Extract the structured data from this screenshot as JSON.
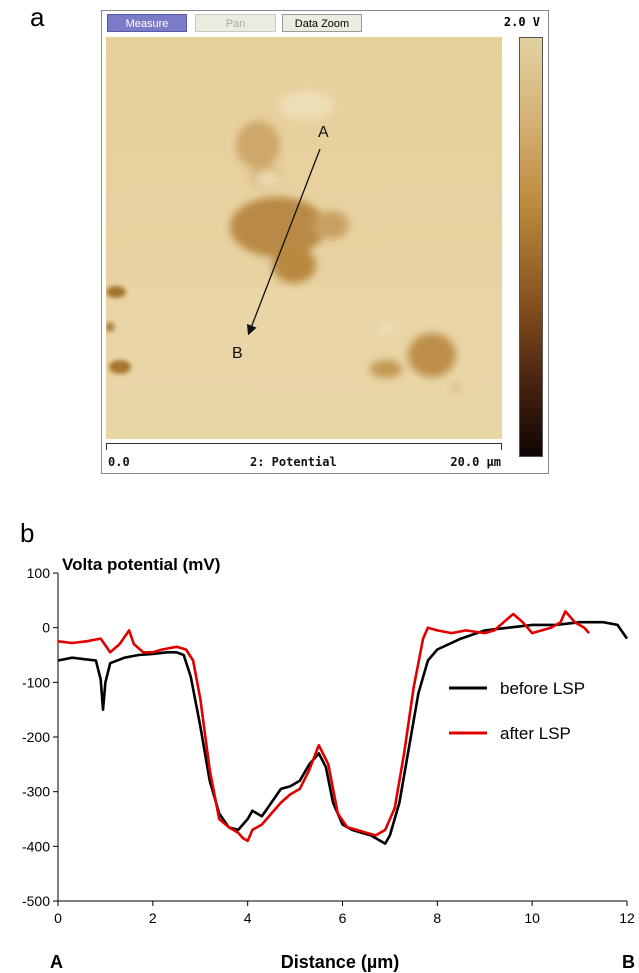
{
  "panels": {
    "a": "a",
    "b": "b"
  },
  "afm": {
    "toolbar": {
      "measure": "Measure",
      "pan": "Pan",
      "data_zoom": "Data Zoom"
    },
    "scale_max": "2.0 V",
    "scan_start": "0.0",
    "channel": "2: Potential",
    "scan_end": "20.0 µm",
    "point_a": "A",
    "point_b": "B",
    "colorbar_colors": [
      "#e2d2a0",
      "#d6b47a",
      "#bd8a3c",
      "#8a5420",
      "#4a2410",
      "#0e0505"
    ]
  },
  "chart_data": {
    "type": "line",
    "title": "Volta potential (mV)",
    "xlabel": "Distance (µm)",
    "ylabel": "",
    "xlim": [
      0,
      12
    ],
    "ylim": [
      -500,
      100
    ],
    "x_ticks": [
      0,
      2,
      4,
      6,
      8,
      10,
      12
    ],
    "y_ticks": [
      100,
      0,
      -100,
      -200,
      -300,
      -400,
      -500
    ],
    "grid": false,
    "legend_position": "right",
    "end_labels": {
      "left": "A",
      "right": "B"
    },
    "series": [
      {
        "name": "before LSP",
        "color": "#000000",
        "points": [
          [
            0,
            -60
          ],
          [
            0.3,
            -55
          ],
          [
            0.6,
            -58
          ],
          [
            0.8,
            -60
          ],
          [
            0.9,
            -95
          ],
          [
            0.95,
            -150
          ],
          [
            1.0,
            -100
          ],
          [
            1.1,
            -65
          ],
          [
            1.4,
            -55
          ],
          [
            1.7,
            -50
          ],
          [
            2.0,
            -48
          ],
          [
            2.3,
            -45
          ],
          [
            2.5,
            -45
          ],
          [
            2.65,
            -50
          ],
          [
            2.8,
            -90
          ],
          [
            3.0,
            -180
          ],
          [
            3.2,
            -280
          ],
          [
            3.4,
            -340
          ],
          [
            3.6,
            -365
          ],
          [
            3.8,
            -370
          ],
          [
            4.0,
            -350
          ],
          [
            4.1,
            -335
          ],
          [
            4.3,
            -345
          ],
          [
            4.5,
            -320
          ],
          [
            4.7,
            -295
          ],
          [
            4.9,
            -290
          ],
          [
            5.1,
            -280
          ],
          [
            5.3,
            -250
          ],
          [
            5.5,
            -230
          ],
          [
            5.65,
            -255
          ],
          [
            5.8,
            -320
          ],
          [
            6.0,
            -360
          ],
          [
            6.2,
            -370
          ],
          [
            6.4,
            -375
          ],
          [
            6.6,
            -380
          ],
          [
            6.8,
            -390
          ],
          [
            6.9,
            -395
          ],
          [
            7.0,
            -380
          ],
          [
            7.2,
            -320
          ],
          [
            7.4,
            -220
          ],
          [
            7.6,
            -120
          ],
          [
            7.8,
            -60
          ],
          [
            8.0,
            -40
          ],
          [
            8.5,
            -20
          ],
          [
            9.0,
            -5
          ],
          [
            9.5,
            0
          ],
          [
            10.0,
            5
          ],
          [
            10.5,
            5
          ],
          [
            11.0,
            10
          ],
          [
            11.5,
            10
          ],
          [
            11.8,
            5
          ],
          [
            12.0,
            -20
          ]
        ]
      },
      {
        "name": "after LSP",
        "color": "#e00000",
        "points": [
          [
            0,
            -25
          ],
          [
            0.3,
            -28
          ],
          [
            0.6,
            -25
          ],
          [
            0.9,
            -20
          ],
          [
            1.1,
            -45
          ],
          [
            1.3,
            -30
          ],
          [
            1.5,
            -5
          ],
          [
            1.6,
            -30
          ],
          [
            1.8,
            -45
          ],
          [
            2.0,
            -45
          ],
          [
            2.2,
            -40
          ],
          [
            2.5,
            -35
          ],
          [
            2.7,
            -40
          ],
          [
            2.85,
            -60
          ],
          [
            3.0,
            -130
          ],
          [
            3.2,
            -260
          ],
          [
            3.4,
            -350
          ],
          [
            3.6,
            -365
          ],
          [
            3.8,
            -375
          ],
          [
            3.9,
            -385
          ],
          [
            4.0,
            -390
          ],
          [
            4.1,
            -370
          ],
          [
            4.3,
            -360
          ],
          [
            4.5,
            -340
          ],
          [
            4.7,
            -320
          ],
          [
            4.9,
            -305
          ],
          [
            5.1,
            -295
          ],
          [
            5.3,
            -260
          ],
          [
            5.5,
            -215
          ],
          [
            5.7,
            -250
          ],
          [
            5.9,
            -340
          ],
          [
            6.1,
            -365
          ],
          [
            6.3,
            -370
          ],
          [
            6.5,
            -375
          ],
          [
            6.7,
            -380
          ],
          [
            6.9,
            -370
          ],
          [
            7.1,
            -330
          ],
          [
            7.3,
            -230
          ],
          [
            7.5,
            -110
          ],
          [
            7.7,
            -20
          ],
          [
            7.8,
            0
          ],
          [
            8.0,
            -5
          ],
          [
            8.3,
            -10
          ],
          [
            8.6,
            -5
          ],
          [
            9.0,
            -10
          ],
          [
            9.2,
            -5
          ],
          [
            9.4,
            10
          ],
          [
            9.6,
            25
          ],
          [
            9.8,
            10
          ],
          [
            10.0,
            -10
          ],
          [
            10.2,
            -5
          ],
          [
            10.4,
            0
          ],
          [
            10.6,
            10
          ],
          [
            10.7,
            30
          ],
          [
            10.9,
            10
          ],
          [
            11.1,
            0
          ],
          [
            11.2,
            -10
          ]
        ]
      }
    ]
  }
}
